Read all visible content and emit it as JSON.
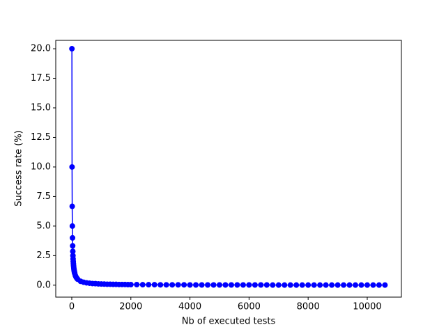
{
  "chart_data": {
    "type": "line",
    "x_label": "Nb of executed tests",
    "y_label": "Success rate (%)",
    "x": [
      5,
      10,
      15,
      20,
      25,
      30,
      35,
      40,
      45,
      50,
      55,
      60,
      65,
      70,
      75,
      80,
      85,
      90,
      95,
      100,
      120,
      140,
      160,
      180,
      200,
      300,
      400,
      500,
      600,
      700,
      800,
      900,
      1000,
      1100,
      1200,
      1300,
      1400,
      1500,
      1600,
      1700,
      1800,
      1900,
      2000,
      2200,
      2400,
      2600,
      2800,
      3000,
      3200,
      3400,
      3600,
      3800,
      4000,
      4200,
      4400,
      4600,
      4800,
      5000,
      5200,
      5400,
      5600,
      5800,
      6000,
      6200,
      6400,
      6600,
      6800,
      7000,
      7200,
      7400,
      7600,
      7800,
      8000,
      8200,
      8400,
      8600,
      8800,
      9000,
      9200,
      9400,
      9600,
      9800,
      10000,
      10200,
      10400,
      10600
    ],
    "series": [
      {
        "color": "#0000ff",
        "values": [
          20,
          10,
          6.67,
          5,
          4,
          3.33,
          2.86,
          2.5,
          2.22,
          2,
          1.82,
          1.67,
          1.54,
          1.43,
          1.33,
          1.25,
          1.18,
          1.11,
          1.05,
          1,
          0.83,
          0.71,
          0.63,
          0.56,
          0.5,
          0.33,
          0.25,
          0.2,
          0.17,
          0.14,
          0.13,
          0.11,
          0.1,
          0.09,
          0.08,
          0.08,
          0.07,
          0.07,
          0.06,
          0.06,
          0.06,
          0.05,
          0.05,
          0.05,
          0.04,
          0.04,
          0.04,
          0.03,
          0.03,
          0.03,
          0.03,
          0.03,
          0.02,
          0.02,
          0.02,
          0.02,
          0.02,
          0.02,
          0.02,
          0.02,
          0.02,
          0.02,
          0.02,
          0.02,
          0.02,
          0.02,
          0.01,
          0.01,
          0.01,
          0.01,
          0.01,
          0.01,
          0.01,
          0.01,
          0.01,
          0.01,
          0.01,
          0.01,
          0.01,
          0.01,
          0.01,
          0.01,
          0.01,
          0.01,
          0.01,
          0.01
        ]
      }
    ],
    "xlim": [
      -542,
      11156
    ],
    "ylim": [
      -1.01,
      20.71
    ],
    "xticks": [
      0,
      2000,
      4000,
      6000,
      8000,
      10000
    ],
    "yticks": [
      {
        "value": 0,
        "label": "0.0"
      },
      {
        "value": 2.5,
        "label": "2.5"
      },
      {
        "value": 5,
        "label": "5.0"
      },
      {
        "value": 7.5,
        "label": "7.5"
      },
      {
        "value": 10,
        "label": "10.0"
      },
      {
        "value": 12.5,
        "label": "12.5"
      },
      {
        "value": 15,
        "label": "15.0"
      },
      {
        "value": 17.5,
        "label": "17.5"
      },
      {
        "value": 20,
        "label": "20.0"
      }
    ]
  }
}
